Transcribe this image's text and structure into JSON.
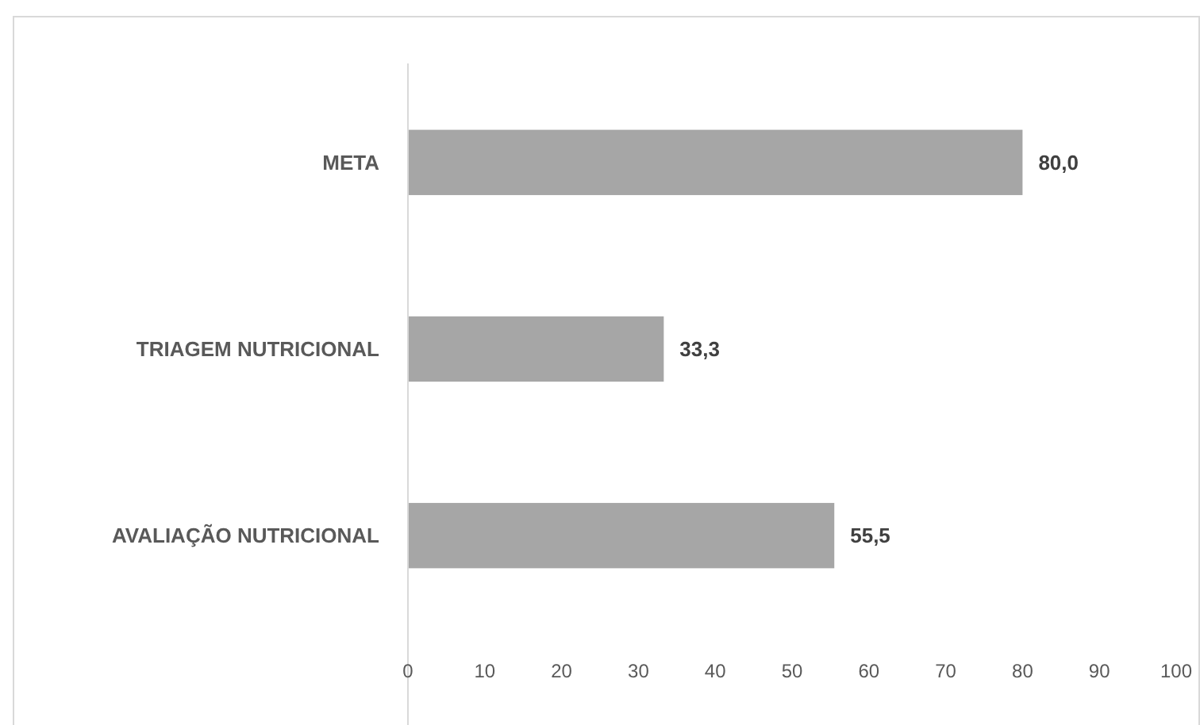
{
  "chart_data": {
    "type": "bar",
    "orientation": "horizontal",
    "categories": [
      "META",
      "TRIAGEM NUTRICIONAL",
      "AVALIAÇÃO NUTRICIONAL"
    ],
    "values": [
      80.0,
      33.3,
      55.5
    ],
    "value_labels": [
      "80,0",
      "33,3",
      "55,5"
    ],
    "color": "#a6a6a6",
    "xlim": [
      0,
      100
    ],
    "xticks": [
      0,
      10,
      20,
      30,
      40,
      50,
      60,
      70,
      80,
      90,
      100
    ],
    "grid": false
  }
}
